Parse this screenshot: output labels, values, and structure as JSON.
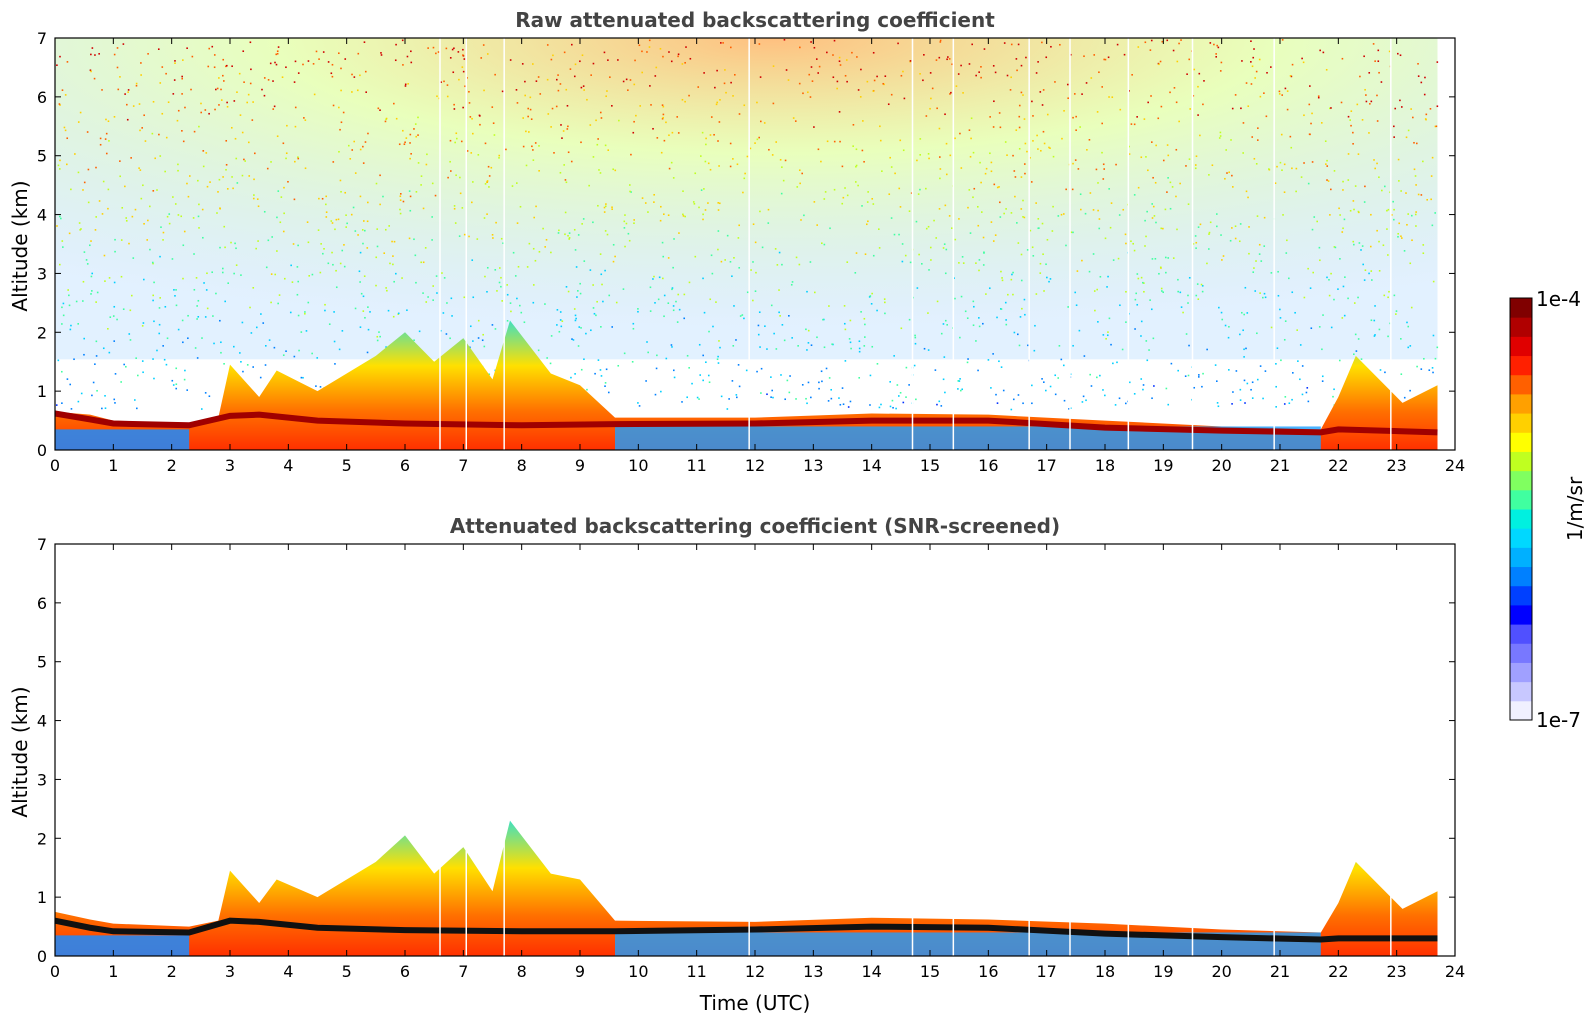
{
  "chart_data": [
    {
      "type": "heatmap",
      "title": "Raw attenuated backscattering coefficient",
      "xlabel": "",
      "ylabel": "Altitude (km)",
      "xlim": [
        0,
        24
      ],
      "ylim": [
        0,
        7
      ],
      "xticks": [
        0,
        1,
        2,
        3,
        4,
        5,
        6,
        7,
        8,
        9,
        10,
        11,
        12,
        13,
        14,
        15,
        16,
        17,
        18,
        19,
        20,
        21,
        22,
        23,
        24
      ],
      "yticks": [
        0,
        1,
        2,
        3,
        4,
        5,
        6,
        7
      ],
      "data_end_time": 23.7,
      "noisy_upper_air": true,
      "boundary_layer_top_km": [
        {
          "t": 0,
          "h": 0.65
        },
        {
          "t": 0.6,
          "h": 0.6
        },
        {
          "t": 1,
          "h": 0.5
        },
        {
          "t": 2.3,
          "h": 0.45
        },
        {
          "t": 2.8,
          "h": 0.55
        },
        {
          "t": 3,
          "h": 1.45
        },
        {
          "t": 3.5,
          "h": 0.9
        },
        {
          "t": 3.8,
          "h": 1.35
        },
        {
          "t": 4.5,
          "h": 1.0
        },
        {
          "t": 5.5,
          "h": 1.6
        },
        {
          "t": 6,
          "h": 2.0
        },
        {
          "t": 6.5,
          "h": 1.5
        },
        {
          "t": 7,
          "h": 1.9
        },
        {
          "t": 7.5,
          "h": 1.2
        },
        {
          "t": 7.8,
          "h": 2.2
        },
        {
          "t": 8.5,
          "h": 1.3
        },
        {
          "t": 9,
          "h": 1.1
        },
        {
          "t": 9.6,
          "h": 0.55
        },
        {
          "t": 12,
          "h": 0.55
        },
        {
          "t": 14,
          "h": 0.62
        },
        {
          "t": 16,
          "h": 0.6
        },
        {
          "t": 18,
          "h": 0.5
        },
        {
          "t": 20,
          "h": 0.4
        },
        {
          "t": 21.7,
          "h": 0.35
        },
        {
          "t": 22,
          "h": 0.9
        },
        {
          "t": 22.3,
          "h": 1.6
        },
        {
          "t": 22.8,
          "h": 1.1
        },
        {
          "t": 23.1,
          "h": 0.8
        },
        {
          "t": 23.7,
          "h": 1.1
        }
      ],
      "cloud_layer_km": [
        {
          "t": 0,
          "h": 0.62
        },
        {
          "t": 0.6,
          "h": 0.52
        },
        {
          "t": 1,
          "h": 0.45
        },
        {
          "t": 2.3,
          "h": 0.42
        },
        {
          "t": 3,
          "h": 0.58
        },
        {
          "t": 3.5,
          "h": 0.6
        },
        {
          "t": 4.5,
          "h": 0.5
        },
        {
          "t": 6,
          "h": 0.45
        },
        {
          "t": 8,
          "h": 0.42
        },
        {
          "t": 9.6,
          "h": 0.44
        },
        {
          "t": 12,
          "h": 0.45
        },
        {
          "t": 14,
          "h": 0.5
        },
        {
          "t": 16,
          "h": 0.5
        },
        {
          "t": 18,
          "h": 0.38
        },
        {
          "t": 20,
          "h": 0.33
        },
        {
          "t": 21.7,
          "h": 0.3
        },
        {
          "t": 22,
          "h": 0.35
        },
        {
          "t": 23.7,
          "h": 0.3
        }
      ]
    },
    {
      "type": "heatmap",
      "title": "Attenuated backscattering coefficient (SNR-screened)",
      "xlabel": "Time (UTC)",
      "ylabel": "Altitude (km)",
      "xlim": [
        0,
        24
      ],
      "ylim": [
        0,
        7
      ],
      "xticks": [
        0,
        1,
        2,
        3,
        4,
        5,
        6,
        7,
        8,
        9,
        10,
        11,
        12,
        13,
        14,
        15,
        16,
        17,
        18,
        19,
        20,
        21,
        22,
        23,
        24
      ],
      "yticks": [
        0,
        1,
        2,
        3,
        4,
        5,
        6,
        7
      ],
      "data_end_time": 23.7,
      "noisy_upper_air": false,
      "boundary_layer_top_km": [
        {
          "t": 0,
          "h": 0.75
        },
        {
          "t": 0.6,
          "h": 0.62
        },
        {
          "t": 1,
          "h": 0.55
        },
        {
          "t": 2.3,
          "h": 0.5
        },
        {
          "t": 2.8,
          "h": 0.6
        },
        {
          "t": 3,
          "h": 1.45
        },
        {
          "t": 3.5,
          "h": 0.9
        },
        {
          "t": 3.8,
          "h": 1.3
        },
        {
          "t": 4.5,
          "h": 1.0
        },
        {
          "t": 5.5,
          "h": 1.6
        },
        {
          "t": 6,
          "h": 2.05
        },
        {
          "t": 6.5,
          "h": 1.4
        },
        {
          "t": 7,
          "h": 1.85
        },
        {
          "t": 7.5,
          "h": 1.1
        },
        {
          "t": 7.8,
          "h": 2.3
        },
        {
          "t": 8.5,
          "h": 1.4
        },
        {
          "t": 9,
          "h": 1.3
        },
        {
          "t": 9.6,
          "h": 0.6
        },
        {
          "t": 12,
          "h": 0.58
        },
        {
          "t": 14,
          "h": 0.65
        },
        {
          "t": 16,
          "h": 0.62
        },
        {
          "t": 18,
          "h": 0.55
        },
        {
          "t": 20,
          "h": 0.45
        },
        {
          "t": 21.7,
          "h": 0.4
        },
        {
          "t": 22,
          "h": 0.9
        },
        {
          "t": 22.3,
          "h": 1.6
        },
        {
          "t": 22.8,
          "h": 1.1
        },
        {
          "t": 23.1,
          "h": 0.8
        },
        {
          "t": 23.7,
          "h": 1.1
        }
      ],
      "cloud_layer_km": [
        {
          "t": 0,
          "h": 0.6
        },
        {
          "t": 0.6,
          "h": 0.48
        },
        {
          "t": 1,
          "h": 0.42
        },
        {
          "t": 2.3,
          "h": 0.4
        },
        {
          "t": 3,
          "h": 0.6
        },
        {
          "t": 3.5,
          "h": 0.58
        },
        {
          "t": 4.5,
          "h": 0.48
        },
        {
          "t": 6,
          "h": 0.44
        },
        {
          "t": 8,
          "h": 0.42
        },
        {
          "t": 9.6,
          "h": 0.42
        },
        {
          "t": 12,
          "h": 0.45
        },
        {
          "t": 14,
          "h": 0.5
        },
        {
          "t": 16,
          "h": 0.48
        },
        {
          "t": 18,
          "h": 0.38
        },
        {
          "t": 20,
          "h": 0.32
        },
        {
          "t": 21.7,
          "h": 0.28
        },
        {
          "t": 22,
          "h": 0.3
        },
        {
          "t": 23.7,
          "h": 0.3
        }
      ]
    }
  ],
  "colorbar": {
    "label": "1/m/sr",
    "max_label": "1e-4",
    "min_label": "1e-7",
    "colors": [
      "#f0f0ff",
      "#c8c8ff",
      "#a0a0ff",
      "#7878ff",
      "#5050ff",
      "#0000ff",
      "#0040ff",
      "#0080ff",
      "#00b0ff",
      "#00d8ff",
      "#00f0e0",
      "#40ffa0",
      "#80ff60",
      "#c0ff20",
      "#ffff00",
      "#ffd000",
      "#ffa000",
      "#ff6000",
      "#ff2000",
      "#e00000",
      "#b00000",
      "#800000"
    ]
  }
}
